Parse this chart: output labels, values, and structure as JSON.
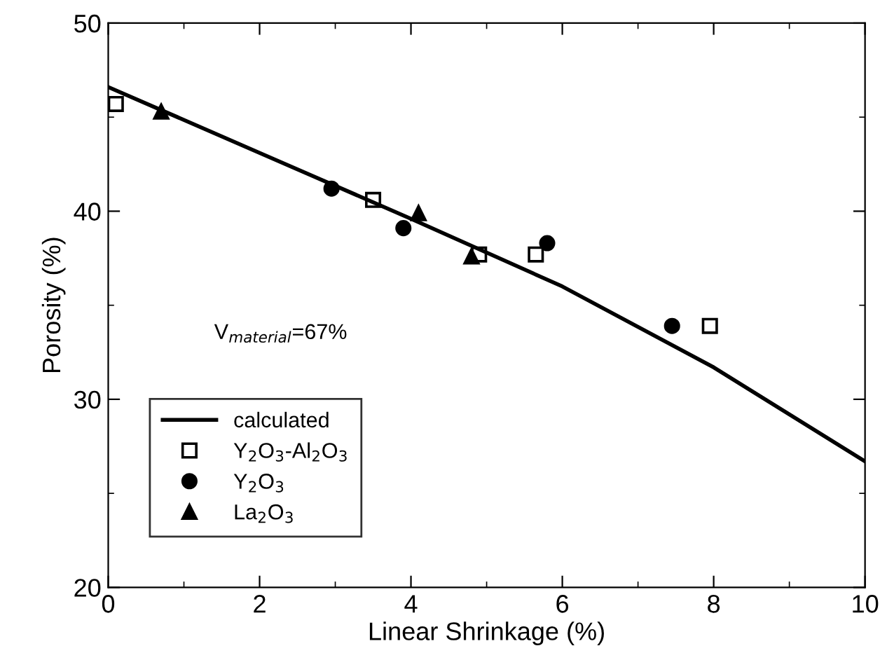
{
  "chart_data": {
    "type": "scatter",
    "xlabel": "Linear Shrinkage (%)",
    "ylabel": "Porosity (%)",
    "xlim": [
      0,
      10
    ],
    "ylim": [
      20,
      50
    ],
    "xticks": [
      0,
      2,
      4,
      6,
      8,
      10
    ],
    "yticks": [
      20,
      30,
      40,
      50
    ],
    "grid": false,
    "legend": "bottom left",
    "annotations": [
      "V$_{material}$=67%"
    ],
    "series": [
      {
        "name": "calculated",
        "type": "line",
        "marker": "none",
        "line_style": "solid",
        "color": "#000000",
        "x": [
          0,
          2,
          4,
          6,
          8,
          10
        ],
        "values": [
          46.6,
          43.1,
          39.6,
          36.0,
          31.7,
          26.7
        ]
      },
      {
        "name": "Y$_{2}$O$_{3}$-Al$_{2}$O$_{3}$",
        "marker": "square",
        "color": "#000000",
        "x": [
          0.1,
          3.5,
          4.9,
          5.65,
          7.95
        ],
        "values": [
          45.7,
          40.6,
          37.7,
          37.7,
          33.9
        ]
      },
      {
        "name": "Y$_{2}$O$_{3}$",
        "marker": "circle",
        "color": "#000000",
        "x": [
          2.95,
          3.9,
          5.8,
          7.45
        ],
        "values": [
          41.2,
          39.1,
          38.3,
          33.9
        ]
      },
      {
        "name": "La$_{2}$O$_{3}$",
        "marker": "triangle",
        "color": "#000000",
        "x": [
          0.7,
          4.1,
          4.8
        ],
        "values": [
          45.3,
          39.9,
          37.6
        ]
      }
    ]
  }
}
